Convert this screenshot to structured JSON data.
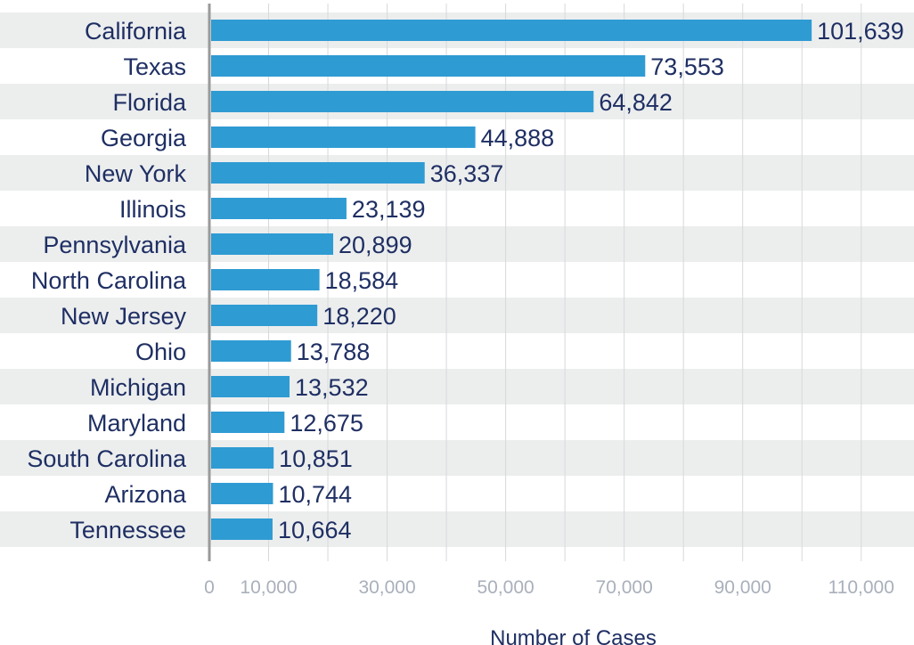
{
  "chart_data": {
    "type": "bar",
    "orientation": "horizontal",
    "categories": [
      "California",
      "Texas",
      "Florida",
      "Georgia",
      "New York",
      "Illinois",
      "Pennsylvania",
      "North Carolina",
      "New Jersey",
      "Ohio",
      "Michigan",
      "Maryland",
      "South Carolina",
      "Arizona",
      "Tennessee"
    ],
    "values": [
      101639,
      73553,
      64842,
      44888,
      36337,
      23139,
      20899,
      18584,
      18220,
      13788,
      13532,
      12675,
      10851,
      10744,
      10664
    ],
    "value_labels": [
      "101,639",
      "73,553",
      "64,842",
      "44,888",
      "36,337",
      "23,139",
      "20,899",
      "18,584",
      "18,220",
      "13,788",
      "13,532",
      "12,675",
      "10,851",
      "10,744",
      "10,664"
    ],
    "title": "",
    "xlabel": "Number of Cases",
    "ylabel": "",
    "xlim": [
      0,
      115000
    ],
    "x_ticks": [
      0,
      10000,
      30000,
      50000,
      70000,
      90000,
      110000
    ],
    "x_tick_labels": [
      "0",
      "10,000",
      "30,000",
      "50,000",
      "70,000",
      "90,000",
      "110,000"
    ],
    "grid": true,
    "legend": "none",
    "colors": {
      "bar": "#2f9bd3",
      "text": "#1f2f63",
      "stripe": "#eceeee",
      "grid": "#d6d8db",
      "axis": "#9a9a9a",
      "tick_text": "#a9b0bb"
    }
  }
}
